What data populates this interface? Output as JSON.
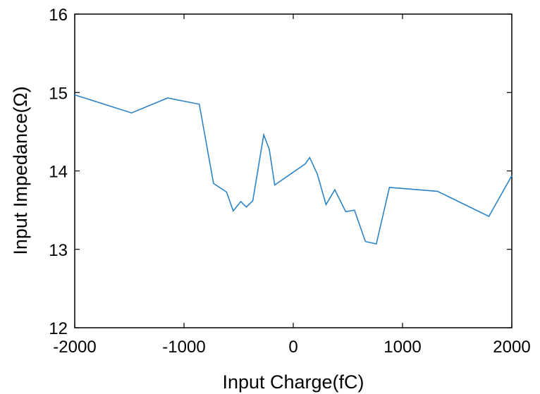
{
  "chart_data": {
    "type": "line",
    "xlabel": "Input Charge(fC)",
    "ylabel": "Input Impedance(Ω)",
    "xlim": [
      -2000,
      2000
    ],
    "ylim": [
      12,
      16
    ],
    "xticks": [
      -2000,
      -1000,
      0,
      1000,
      2000
    ],
    "xtick_labels": [
      "-2000",
      "-1000",
      "0",
      "1000",
      "2000"
    ],
    "yticks": [
      12,
      13,
      14,
      15,
      16
    ],
    "ytick_labels": [
      "12",
      "13",
      "14",
      "15",
      "16"
    ],
    "grid": false,
    "line_color": "#2b83c6",
    "series": [
      {
        "x": [
          -2000,
          -1480,
          -1150,
          -860,
          -730,
          -610,
          -550,
          -480,
          -430,
          -370,
          -270,
          -220,
          -170,
          110,
          150,
          220,
          300,
          380,
          480,
          560,
          660,
          760,
          880,
          1320,
          1790,
          2000
        ],
        "y": [
          14.97,
          14.74,
          14.93,
          14.85,
          13.84,
          13.73,
          13.49,
          13.61,
          13.54,
          13.62,
          14.46,
          14.28,
          13.82,
          14.09,
          14.17,
          13.96,
          13.57,
          13.76,
          13.48,
          13.5,
          13.1,
          13.07,
          13.79,
          13.74,
          13.42,
          13.94
        ]
      }
    ]
  }
}
